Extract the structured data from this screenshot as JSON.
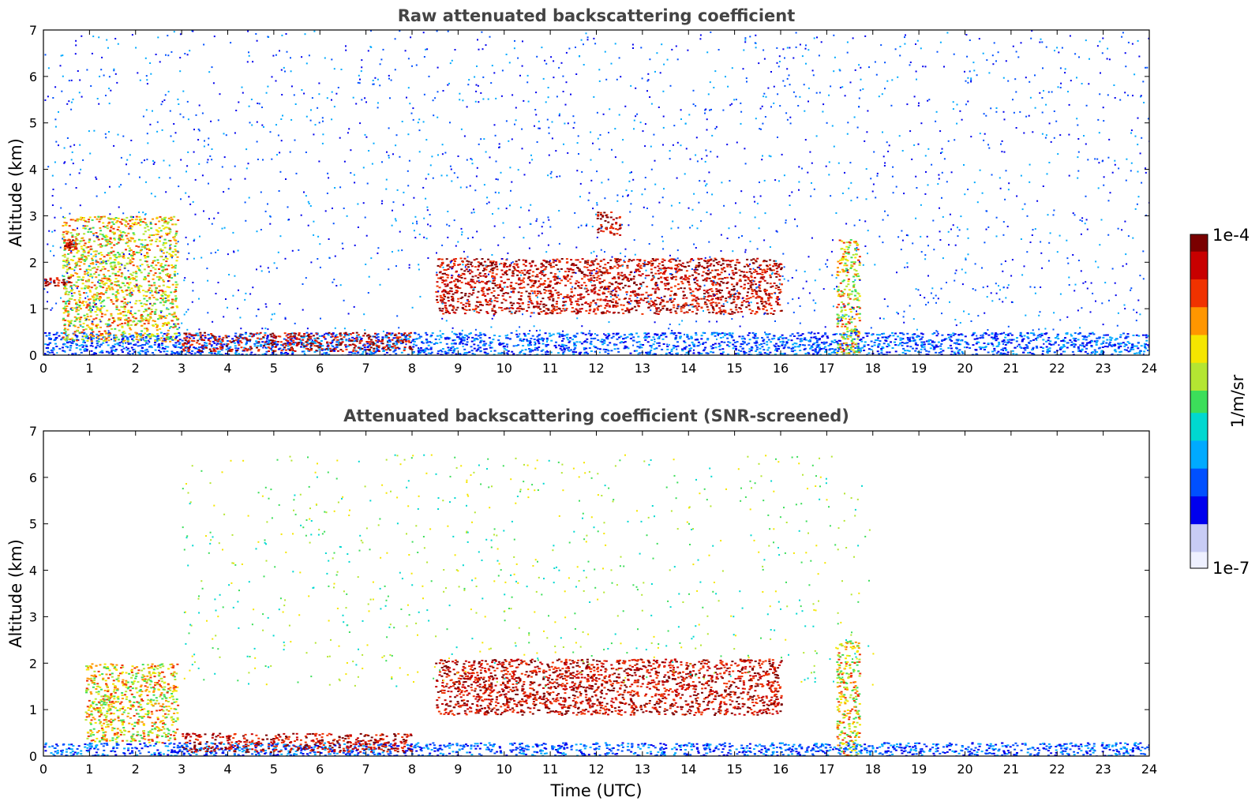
{
  "colors": {
    "title": "#444444",
    "background": "#ffffff",
    "colormap": [
      "#eef0ff",
      "#c8ccf5",
      "#0000ee",
      "#0050ff",
      "#00aaff",
      "#00d8d0",
      "#3cde5a",
      "#b4e632",
      "#f5e600",
      "#ff9600",
      "#f03200",
      "#c80000",
      "#7a0000"
    ]
  },
  "chart_data": [
    {
      "type": "heatmap",
      "title": "Raw attenuated backscattering coefficient",
      "xlabel": "",
      "ylabel": "Altitude (km)",
      "xlim": [
        0,
        24
      ],
      "ylim": [
        0,
        7
      ],
      "x_ticks": [
        "0",
        "1",
        "2",
        "3",
        "4",
        "5",
        "6",
        "7",
        "8",
        "9",
        "10",
        "11",
        "12",
        "13",
        "14",
        "15",
        "16",
        "17",
        "18",
        "19",
        "20",
        "21",
        "22",
        "23",
        "24"
      ],
      "y_ticks": [
        "0",
        "1",
        "2",
        "3",
        "4",
        "5",
        "6",
        "7"
      ],
      "features": [
        {
          "kind": "surface_layer",
          "x": [
            0,
            24
          ],
          "y": [
            0,
            0.5
          ],
          "level": "low"
        },
        {
          "kind": "aerosol_plume",
          "x": [
            0.4,
            2.9
          ],
          "y": [
            0.3,
            3.0
          ],
          "level": "high"
        },
        {
          "kind": "cloud_base",
          "x": [
            0,
            0.6
          ],
          "y": [
            1.5,
            1.7
          ],
          "level": "max"
        },
        {
          "kind": "cloud_base",
          "x": [
            0.4,
            0.7
          ],
          "y": [
            2.3,
            2.5
          ],
          "level": "max"
        },
        {
          "kind": "boundary_layer_top",
          "x": [
            3.0,
            8.0
          ],
          "y": [
            0.1,
            0.5
          ],
          "level": "max"
        },
        {
          "kind": "cloud_layer",
          "x": [
            8.5,
            16.0
          ],
          "y": [
            0.9,
            2.1
          ],
          "level": "max"
        },
        {
          "kind": "cloud_patch",
          "x": [
            12.0,
            12.5
          ],
          "y": [
            2.6,
            3.1
          ],
          "level": "max"
        },
        {
          "kind": "aerosol_column",
          "x": [
            17.2,
            17.7
          ],
          "y": [
            0,
            2.5
          ],
          "level": "high"
        },
        {
          "kind": "noise_region",
          "x": [
            0,
            24
          ],
          "y": [
            0,
            7
          ],
          "level": "low"
        }
      ]
    },
    {
      "type": "heatmap",
      "title": "Attenuated backscattering coefficient (SNR-screened)",
      "xlabel": "Time (UTC)",
      "ylabel": "Altitude (km)",
      "xlim": [
        0,
        24
      ],
      "ylim": [
        0,
        7
      ],
      "x_ticks": [
        "0",
        "1",
        "2",
        "3",
        "4",
        "5",
        "6",
        "7",
        "8",
        "9",
        "10",
        "11",
        "12",
        "13",
        "14",
        "15",
        "16",
        "17",
        "18",
        "19",
        "20",
        "21",
        "22",
        "23",
        "24"
      ],
      "y_ticks": [
        "0",
        "1",
        "2",
        "3",
        "4",
        "5",
        "6",
        "7"
      ],
      "features": [
        {
          "kind": "surface_layer",
          "x": [
            0,
            24
          ],
          "y": [
            0,
            0.3
          ],
          "level": "low"
        },
        {
          "kind": "aerosol_plume",
          "x": [
            0.9,
            2.9
          ],
          "y": [
            0.3,
            2.0
          ],
          "level": "high"
        },
        {
          "kind": "boundary_layer_top",
          "x": [
            3.0,
            8.0
          ],
          "y": [
            0.1,
            0.5
          ],
          "level": "max"
        },
        {
          "kind": "cloud_layer",
          "x": [
            8.5,
            16.0
          ],
          "y": [
            0.9,
            2.1
          ],
          "level": "max"
        },
        {
          "kind": "aerosol_column",
          "x": [
            17.2,
            17.7
          ],
          "y": [
            0,
            2.5
          ],
          "level": "high"
        },
        {
          "kind": "sparse_signal",
          "x": [
            3,
            18
          ],
          "y": [
            1.5,
            6.5
          ],
          "level": "mid"
        }
      ]
    }
  ],
  "colorbar": {
    "top_label": "1e-4",
    "bottom_label": "1e-7",
    "unit": "1/m/sr"
  }
}
